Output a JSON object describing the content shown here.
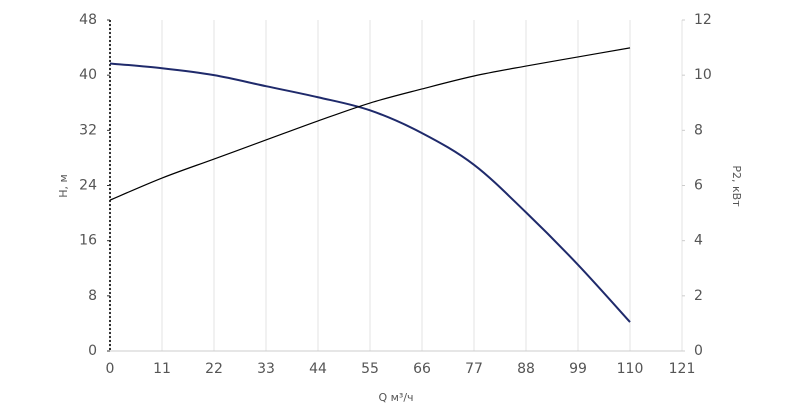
{
  "chart_data": {
    "type": "line",
    "x_label": "Q м³/ч",
    "y_label": "H, м",
    "y2_label": "P2, кВт",
    "x": [
      0,
      11,
      22,
      33,
      44,
      55,
      66,
      77,
      88,
      99,
      110
    ],
    "series": [
      {
        "color": "#1f2a6b",
        "axis": "y",
        "values": [
          41.7,
          41.0,
          40.0,
          38.4,
          36.8,
          34.9,
          31.6,
          27.0,
          20.1,
          12.5,
          4.2
        ]
      },
      {
        "color": "#000000",
        "axis": "y2",
        "values": [
          5.47,
          6.27,
          6.96,
          7.65,
          8.34,
          8.99,
          9.5,
          9.97,
          10.33,
          10.66,
          10.99
        ]
      }
    ],
    "xlim": [
      0,
      121
    ],
    "xticks": [
      0,
      11,
      22,
      33,
      44,
      55,
      66,
      77,
      88,
      99,
      110,
      121
    ],
    "ylim": [
      0,
      48
    ],
    "yticks": [
      0,
      8,
      16,
      24,
      32,
      40,
      48
    ],
    "y2lim": [
      0,
      12
    ],
    "y2ticks": [
      0,
      2,
      4,
      6,
      8,
      10,
      12
    ],
    "grid": "x"
  }
}
